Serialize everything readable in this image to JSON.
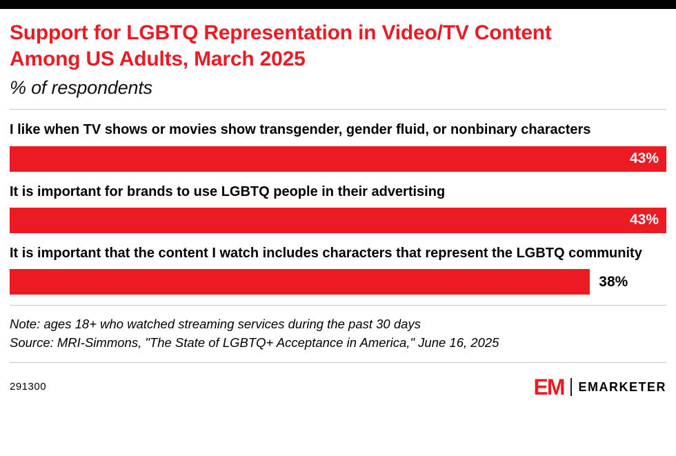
{
  "chart_data": {
    "type": "bar",
    "orientation": "horizontal",
    "title": "Support for LGBTQ Representation in Video/TV Content Among US Adults, March 2025",
    "subtitle": "% of respondents",
    "categories": [
      "I like when TV shows or movies show transgender, gender fluid, or nonbinary characters",
      "It is important for brands to use LGBTQ people in their advertising",
      "It is important that the content I watch includes characters that represent the LGBTQ community"
    ],
    "values": [
      43,
      43,
      38
    ],
    "value_labels": [
      "43%",
      "43%",
      "38%"
    ],
    "xmax": 43,
    "bar_color": "#EC1B23",
    "grid": false,
    "legend": "none"
  },
  "footnotes": {
    "note": "Note: ages 18+ who watched streaming services during the past 30 days",
    "source": "Source: MRI-Simmons, \"The State of LGBTQ+ Acceptance in America,\" June 16, 2025"
  },
  "footer": {
    "chart_id": "291300",
    "brand_monogram": "EM",
    "brand_name": "EMARKETER"
  },
  "colors": {
    "accent_red": "#EC1B23",
    "text_black": "#000000",
    "divider_gray": "#c7c7c7",
    "top_bar_black": "#000000"
  }
}
